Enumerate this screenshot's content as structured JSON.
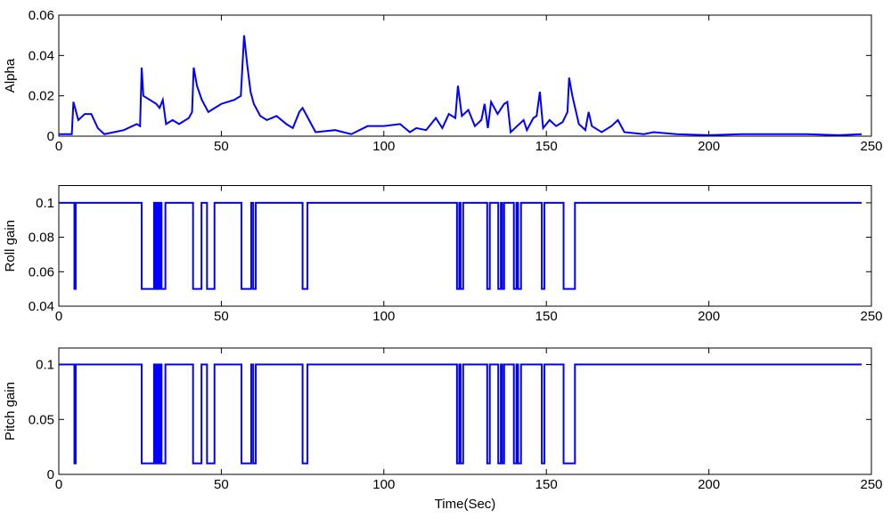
{
  "chart_data": [
    {
      "type": "line",
      "y_label": "Alpha",
      "x": [
        0,
        4,
        4.5,
        6,
        8,
        10,
        12,
        14,
        17,
        20,
        24,
        25,
        25.5,
        26,
        28,
        30,
        31,
        32,
        33,
        35,
        37,
        40,
        41,
        41.5,
        42.5,
        44,
        46,
        48,
        50,
        52,
        54,
        56,
        57,
        58,
        59,
        60,
        62,
        64,
        67,
        70,
        72,
        74,
        75,
        77,
        79,
        85,
        90,
        95,
        100,
        105,
        108,
        110,
        113,
        116,
        118,
        120,
        122,
        122.8,
        124,
        126,
        128,
        130,
        131,
        132,
        133,
        135,
        137,
        138,
        139,
        141,
        143,
        144,
        146,
        147,
        148,
        149,
        151,
        153,
        155,
        156.5,
        157,
        158,
        160,
        162,
        163,
        164,
        167,
        170,
        172,
        174,
        180,
        183,
        190,
        200,
        210,
        220,
        230,
        240,
        247
      ],
      "series": [
        {
          "color": "#0000ff",
          "values": [
            0.001,
            0.001,
            0.017,
            0.008,
            0.011,
            0.011,
            0.004,
            0.001,
            0.002,
            0.003,
            0.006,
            0.005,
            0.034,
            0.02,
            0.018,
            0.016,
            0.014,
            0.018,
            0.006,
            0.008,
            0.006,
            0.009,
            0.012,
            0.034,
            0.025,
            0.018,
            0.012,
            0.014,
            0.016,
            0.017,
            0.018,
            0.02,
            0.05,
            0.035,
            0.022,
            0.016,
            0.01,
            0.008,
            0.01,
            0.006,
            0.004,
            0.012,
            0.014,
            0.008,
            0.002,
            0.003,
            0.001,
            0.005,
            0.005,
            0.006,
            0.002,
            0.004,
            0.003,
            0.009,
            0.004,
            0.011,
            0.009,
            0.025,
            0.01,
            0.013,
            0.005,
            0.008,
            0.016,
            0.004,
            0.017,
            0.011,
            0.016,
            0.017,
            0.002,
            0.005,
            0.008,
            0.003,
            0.009,
            0.01,
            0.022,
            0.004,
            0.008,
            0.005,
            0.007,
            0.012,
            0.029,
            0.02,
            0.006,
            0.003,
            0.012,
            0.005,
            0.002,
            0.005,
            0.008,
            0.002,
            0.001,
            0.002,
            0.001,
            0.0005,
            0.001,
            0.001,
            0.001,
            0.0005,
            0.001
          ]
        }
      ],
      "xlim": [
        0,
        250
      ],
      "xticks": [
        0,
        50,
        100,
        150,
        200,
        250
      ],
      "ylim": [
        0,
        0.06
      ],
      "yticks": [
        0,
        0.02,
        0.04,
        0.06
      ]
    },
    {
      "type": "line",
      "y_label": "Roll gain",
      "x": [
        0,
        4.8,
        4.8,
        5.2,
        5.2,
        25.5,
        25.5,
        29.3,
        29.3,
        29.7,
        29.7,
        30.2,
        30.2,
        30.6,
        30.6,
        31.1,
        31.1,
        31.6,
        31.6,
        32.8,
        32.8,
        41.3,
        41.3,
        43.9,
        43.9,
        45.6,
        45.6,
        47.9,
        47.9,
        56.2,
        56.2,
        59.2,
        59.2,
        59.8,
        59.8,
        60.6,
        60.6,
        75,
        75,
        76.5,
        76.5,
        122.5,
        122.5,
        123.2,
        123.2,
        123.6,
        123.6,
        124.4,
        124.4,
        131.8,
        131.8,
        132.6,
        132.6,
        135.2,
        135.2,
        136,
        136,
        136.4,
        136.4,
        137,
        137,
        140,
        140,
        140.8,
        140.8,
        141.3,
        141.3,
        142.2,
        142.2,
        148.6,
        148.6,
        149.4,
        149.4,
        155.3,
        155.3,
        158.8,
        158.8,
        247
      ],
      "series": [
        {
          "color": "#0000ff",
          "values": [
            0.1,
            0.1,
            0.05,
            0.05,
            0.1,
            0.1,
            0.05,
            0.05,
            0.1,
            0.1,
            0.05,
            0.05,
            0.1,
            0.1,
            0.05,
            0.05,
            0.1,
            0.1,
            0.05,
            0.05,
            0.1,
            0.1,
            0.05,
            0.05,
            0.1,
            0.1,
            0.05,
            0.05,
            0.1,
            0.1,
            0.05,
            0.05,
            0.1,
            0.1,
            0.05,
            0.05,
            0.1,
            0.1,
            0.05,
            0.05,
            0.1,
            0.1,
            0.05,
            0.05,
            0.1,
            0.1,
            0.05,
            0.05,
            0.1,
            0.1,
            0.05,
            0.05,
            0.1,
            0.1,
            0.05,
            0.05,
            0.1,
            0.1,
            0.05,
            0.05,
            0.1,
            0.1,
            0.05,
            0.05,
            0.1,
            0.1,
            0.05,
            0.05,
            0.1,
            0.1,
            0.05,
            0.05,
            0.1,
            0.1,
            0.05,
            0.05,
            0.1,
            0.1
          ]
        }
      ],
      "xlim": [
        0,
        250
      ],
      "xticks": [
        0,
        50,
        100,
        150,
        200,
        250
      ],
      "ylim": [
        0.04,
        0.11
      ],
      "yticks": [
        0.04,
        0.06,
        0.08,
        0.1
      ]
    },
    {
      "type": "line",
      "y_label": "Pitch gain",
      "x_label": "Time(Sec)",
      "x": [
        0,
        4.8,
        4.8,
        5.2,
        5.2,
        25.5,
        25.5,
        29.3,
        29.3,
        29.7,
        29.7,
        30.2,
        30.2,
        30.6,
        30.6,
        31.1,
        31.1,
        31.6,
        31.6,
        32.8,
        32.8,
        41.3,
        41.3,
        43.9,
        43.9,
        45.6,
        45.6,
        47.9,
        47.9,
        56.2,
        56.2,
        59.2,
        59.2,
        59.8,
        59.8,
        60.6,
        60.6,
        75,
        75,
        76.5,
        76.5,
        122.5,
        122.5,
        123.2,
        123.2,
        123.6,
        123.6,
        124.4,
        124.4,
        131.8,
        131.8,
        132.6,
        132.6,
        135.2,
        135.2,
        136,
        136,
        136.4,
        136.4,
        137,
        137,
        140,
        140,
        140.8,
        140.8,
        141.3,
        141.3,
        142.2,
        142.2,
        148.6,
        148.6,
        149.4,
        149.4,
        155.3,
        155.3,
        158.8,
        158.8,
        247
      ],
      "series": [
        {
          "color": "#0000ff",
          "values": [
            0.1,
            0.1,
            0.01,
            0.01,
            0.1,
            0.1,
            0.01,
            0.01,
            0.1,
            0.1,
            0.01,
            0.01,
            0.1,
            0.1,
            0.01,
            0.01,
            0.1,
            0.1,
            0.01,
            0.01,
            0.1,
            0.1,
            0.01,
            0.01,
            0.1,
            0.1,
            0.01,
            0.01,
            0.1,
            0.1,
            0.01,
            0.01,
            0.1,
            0.1,
            0.01,
            0.01,
            0.1,
            0.1,
            0.01,
            0.01,
            0.1,
            0.1,
            0.01,
            0.01,
            0.1,
            0.1,
            0.01,
            0.01,
            0.1,
            0.1,
            0.01,
            0.01,
            0.1,
            0.1,
            0.01,
            0.01,
            0.1,
            0.1,
            0.01,
            0.01,
            0.1,
            0.1,
            0.01,
            0.01,
            0.1,
            0.1,
            0.01,
            0.01,
            0.1,
            0.1,
            0.01,
            0.01,
            0.1,
            0.1,
            0.01,
            0.01,
            0.1,
            0.1
          ]
        }
      ],
      "xlim": [
        0,
        250
      ],
      "xticks": [
        0,
        50,
        100,
        150,
        200,
        250
      ],
      "ylim": [
        0,
        0.115
      ],
      "yticks": [
        0,
        0.05,
        0.1
      ]
    }
  ]
}
